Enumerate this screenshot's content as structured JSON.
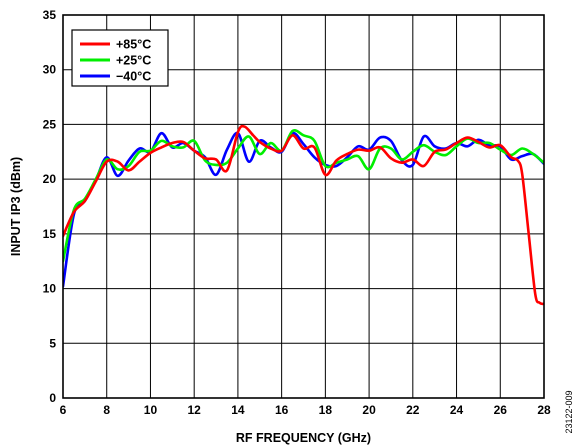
{
  "chart_data": {
    "type": "line",
    "xlabel": "RF FREQUENCY (GHz)",
    "ylabel": "INPUT IP3 (dBm)",
    "xlim": [
      6,
      28
    ],
    "ylim": [
      0,
      35
    ],
    "x_ticks": [
      "6",
      "8",
      "10",
      "12",
      "14",
      "16",
      "18",
      "20",
      "22",
      "24",
      "26",
      "28"
    ],
    "y_ticks": [
      "0",
      "5",
      "10",
      "15",
      "20",
      "25",
      "30",
      "35"
    ],
    "grid": true,
    "legend_position": "top-left",
    "figure_id": "23122-009",
    "series": [
      {
        "name": "+85°C",
        "color": "#ff0000",
        "points": [
          [
            6,
            14.8
          ],
          [
            6.5,
            17.0
          ],
          [
            7,
            18.0
          ],
          [
            7.5,
            19.8
          ],
          [
            8,
            21.6
          ],
          [
            8.5,
            21.6
          ],
          [
            9,
            20.8
          ],
          [
            9.5,
            21.6
          ],
          [
            10,
            22.4
          ],
          [
            10.5,
            22.9
          ],
          [
            11,
            23.3
          ],
          [
            11.5,
            23.4
          ],
          [
            12,
            22.6
          ],
          [
            12.5,
            21.9
          ],
          [
            13,
            21.8
          ],
          [
            13.5,
            20.8
          ],
          [
            14,
            24.3
          ],
          [
            14.3,
            24.8
          ],
          [
            14.7,
            24.0
          ],
          [
            15,
            23.4
          ],
          [
            15.5,
            22.8
          ],
          [
            16,
            22.6
          ],
          [
            16.5,
            24.0
          ],
          [
            17,
            22.8
          ],
          [
            17.5,
            22.9
          ],
          [
            18,
            20.4
          ],
          [
            18.5,
            21.7
          ],
          [
            19,
            22.3
          ],
          [
            19.5,
            22.7
          ],
          [
            20,
            22.6
          ],
          [
            20.5,
            22.9
          ],
          [
            21,
            21.9
          ],
          [
            21.5,
            21.5
          ],
          [
            22,
            21.8
          ],
          [
            22.5,
            21.2
          ],
          [
            23,
            22.5
          ],
          [
            23.5,
            22.7
          ],
          [
            24,
            23.3
          ],
          [
            24.5,
            23.8
          ],
          [
            25,
            23.4
          ],
          [
            25.5,
            22.9
          ],
          [
            26,
            23.1
          ],
          [
            26.5,
            22.0
          ],
          [
            26.8,
            21.7
          ],
          [
            27,
            20.5
          ],
          [
            27.3,
            15.0
          ],
          [
            27.6,
            9.5
          ],
          [
            27.8,
            8.7
          ],
          [
            28,
            8.6
          ]
        ]
      },
      {
        "name": "+25°C",
        "color": "#00ee00",
        "points": [
          [
            6,
            12.5
          ],
          [
            6.5,
            17.2
          ],
          [
            7,
            18.2
          ],
          [
            7.5,
            20.0
          ],
          [
            8,
            21.8
          ],
          [
            8.5,
            20.9
          ],
          [
            9,
            21.2
          ],
          [
            9.5,
            22.5
          ],
          [
            10,
            22.6
          ],
          [
            10.5,
            23.5
          ],
          [
            11,
            23.0
          ],
          [
            11.5,
            22.9
          ],
          [
            12,
            23.5
          ],
          [
            12.5,
            21.7
          ],
          [
            13,
            21.3
          ],
          [
            13.5,
            21.5
          ],
          [
            14,
            22.8
          ],
          [
            14.5,
            23.9
          ],
          [
            15,
            22.3
          ],
          [
            15.5,
            23.3
          ],
          [
            16,
            22.6
          ],
          [
            16.5,
            24.4
          ],
          [
            17,
            24.0
          ],
          [
            17.5,
            23.5
          ],
          [
            18,
            21.2
          ],
          [
            18.5,
            21.5
          ],
          [
            19,
            21.8
          ],
          [
            19.5,
            22.1
          ],
          [
            20,
            20.9
          ],
          [
            20.5,
            22.8
          ],
          [
            21,
            22.8
          ],
          [
            21.5,
            21.8
          ],
          [
            22,
            22.5
          ],
          [
            22.5,
            23.1
          ],
          [
            23,
            22.5
          ],
          [
            23.5,
            22.2
          ],
          [
            24,
            23.0
          ],
          [
            24.5,
            23.7
          ],
          [
            25,
            23.3
          ],
          [
            25.5,
            23.3
          ],
          [
            26,
            22.7
          ],
          [
            26.5,
            22.2
          ],
          [
            27,
            22.8
          ],
          [
            27.5,
            22.3
          ],
          [
            28,
            21.5
          ]
        ]
      },
      {
        "name": "−40°C",
        "color": "#0000ff",
        "points": [
          [
            6,
            10.2
          ],
          [
            6.5,
            16.8
          ],
          [
            7,
            18.0
          ],
          [
            7.5,
            19.9
          ],
          [
            8,
            22.0
          ],
          [
            8.5,
            20.3
          ],
          [
            9,
            21.7
          ],
          [
            9.5,
            22.8
          ],
          [
            10,
            22.5
          ],
          [
            10.5,
            24.2
          ],
          [
            11,
            22.9
          ],
          [
            11.5,
            23.3
          ],
          [
            12,
            22.6
          ],
          [
            12.5,
            22.0
          ],
          [
            13,
            20.4
          ],
          [
            13.5,
            22.7
          ],
          [
            14,
            24.2
          ],
          [
            14.5,
            21.6
          ],
          [
            15,
            23.5
          ],
          [
            15.5,
            22.9
          ],
          [
            16,
            22.5
          ],
          [
            16.5,
            24.2
          ],
          [
            17,
            23.2
          ],
          [
            17.5,
            22.0
          ],
          [
            18,
            21.3
          ],
          [
            18.5,
            21.2
          ],
          [
            19,
            22.0
          ],
          [
            19.5,
            23.0
          ],
          [
            20,
            22.7
          ],
          [
            20.5,
            23.8
          ],
          [
            21,
            23.5
          ],
          [
            21.5,
            21.7
          ],
          [
            22,
            21.3
          ],
          [
            22.5,
            23.9
          ],
          [
            23,
            23.0
          ],
          [
            23.5,
            22.8
          ],
          [
            24,
            23.3
          ],
          [
            24.5,
            23.0
          ],
          [
            25,
            23.6
          ],
          [
            25.5,
            23.1
          ],
          [
            26,
            23.0
          ],
          [
            26.5,
            21.8
          ],
          [
            27,
            22.1
          ],
          [
            27.5,
            22.3
          ],
          [
            28,
            21.4
          ]
        ]
      }
    ]
  }
}
